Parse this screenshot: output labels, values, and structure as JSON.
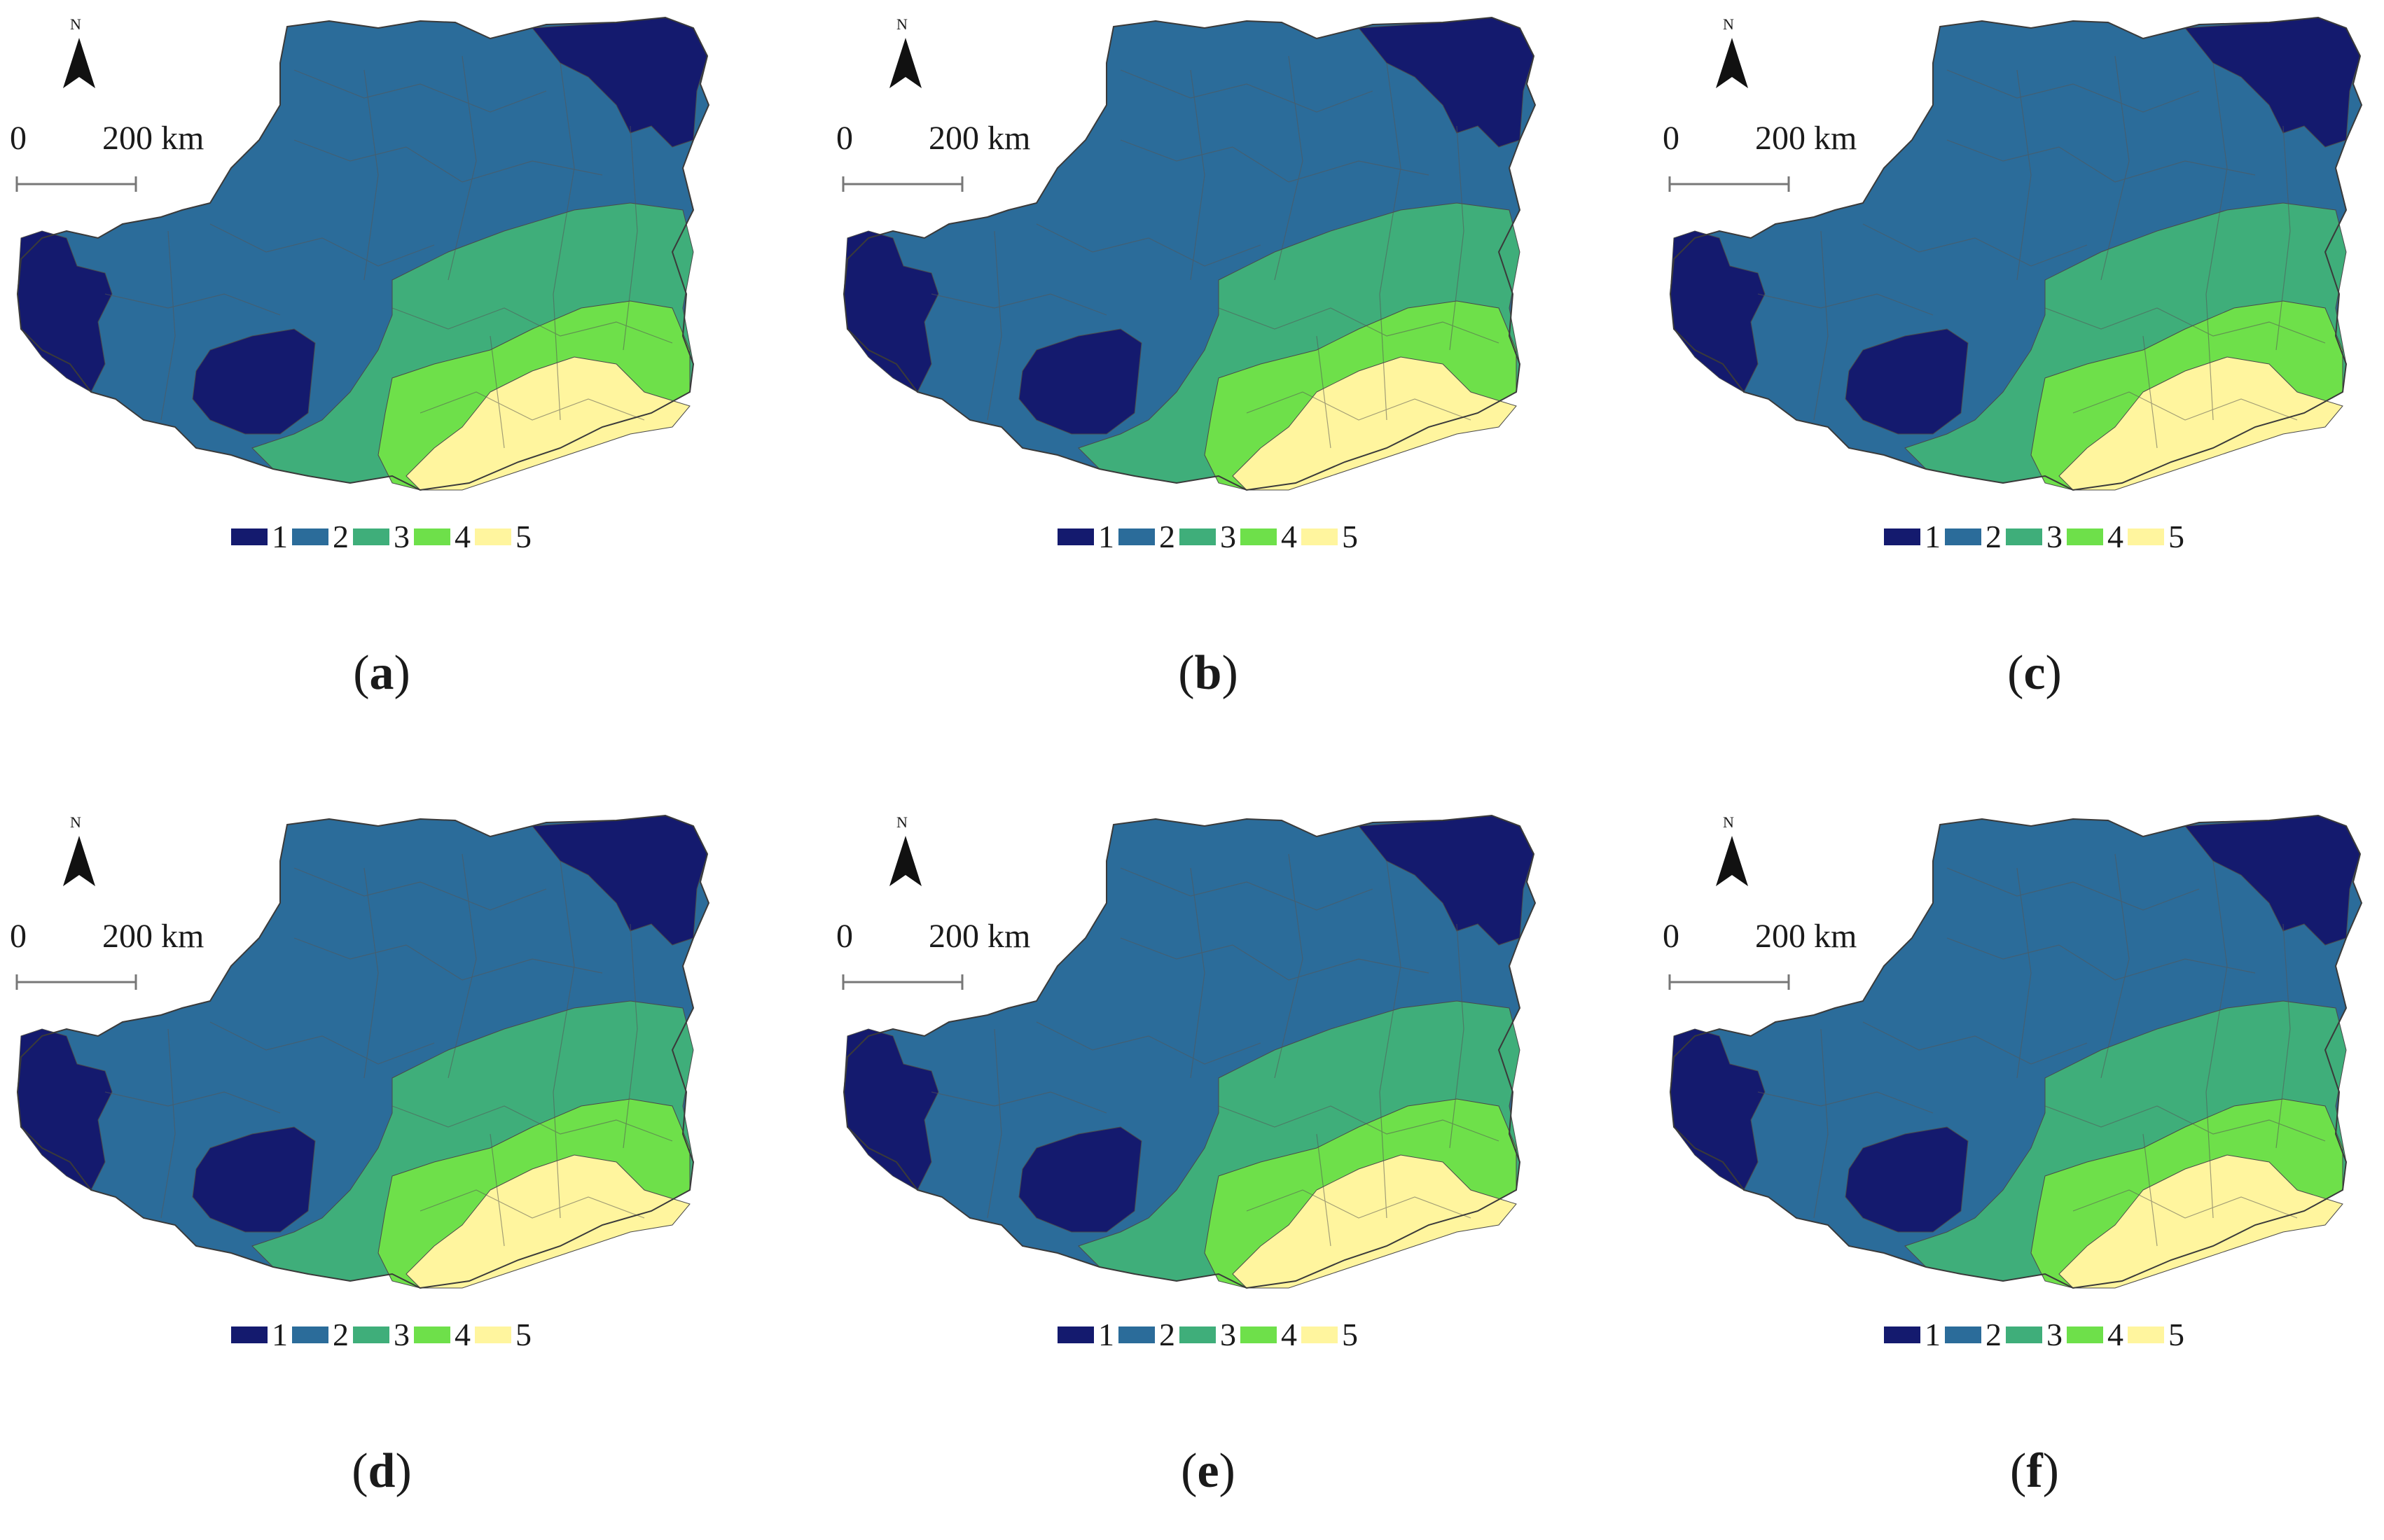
{
  "north_label": "N",
  "scale": {
    "start": "0",
    "end": "200 km"
  },
  "legend": [
    {
      "label": "1",
      "color": "#141a6e"
    },
    {
      "label": "2",
      "color": "#2b6c9a"
    },
    {
      "label": "3",
      "color": "#3fae7a"
    },
    {
      "label": "4",
      "color": "#6ee04a"
    },
    {
      "label": "5",
      "color": "#fff59e"
    }
  ],
  "panels": [
    {
      "id": "a",
      "caption_open": "(",
      "caption_letter": "a",
      "caption_close": ")"
    },
    {
      "id": "b",
      "caption_open": "(",
      "caption_letter": "b",
      "caption_close": ")"
    },
    {
      "id": "c",
      "caption_open": "(",
      "caption_letter": "c",
      "caption_close": ")"
    },
    {
      "id": "d",
      "caption_open": "(",
      "caption_letter": "d",
      "caption_close": ")"
    },
    {
      "id": "e",
      "caption_open": "(",
      "caption_letter": "e",
      "caption_close": ")"
    },
    {
      "id": "f",
      "caption_open": "(",
      "caption_letter": "f",
      "caption_close": ")"
    }
  ]
}
